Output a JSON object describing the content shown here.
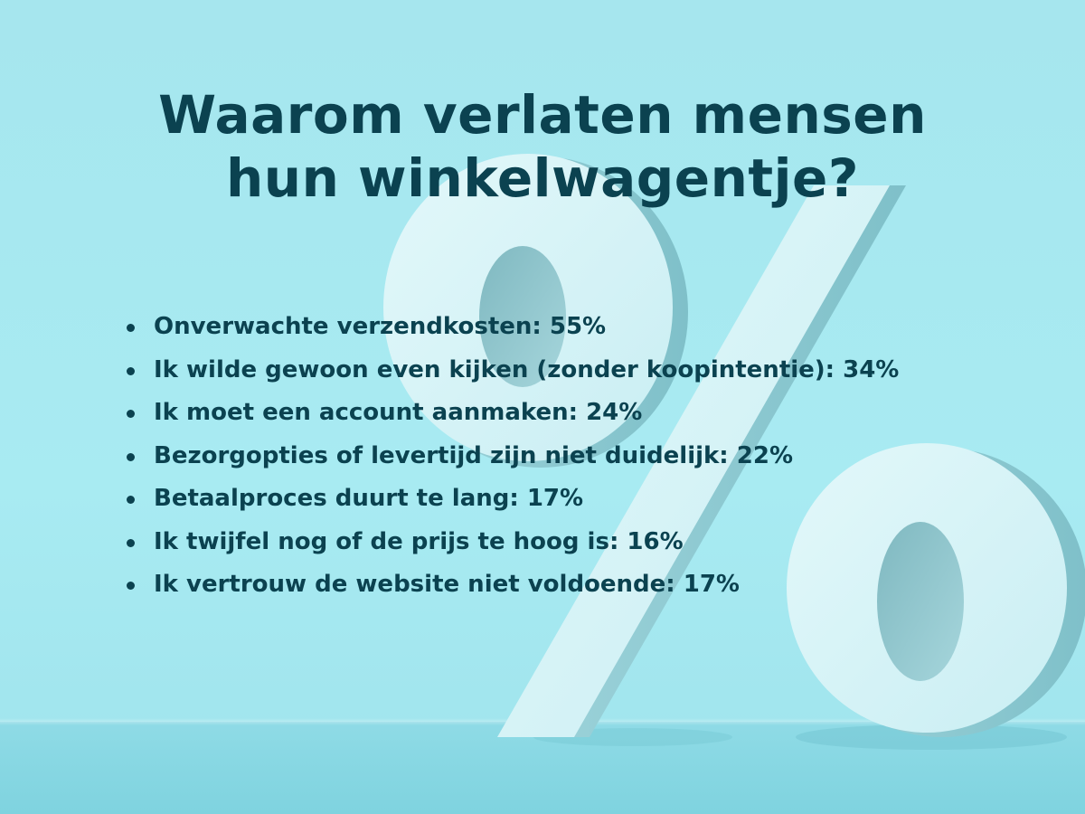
{
  "title": {
    "line1": "Waarom verlaten mensen",
    "line2": "hun winkelwagentje?"
  },
  "reasons": [
    "Onverwachte verzendkosten: 55%",
    "Ik wilde gewoon even kijken (zonder koopintentie): 34%",
    "Ik moet een account aanmaken: 24%",
    "Bezorgopties of levertijd zijn niet duidelijk: 22%",
    "Betaalproces duurt te lang: 17%",
    "Ik twijfel nog of de prijs te hoog is: 16%",
    "Ik vertrouw de website niet voldoende: 17%"
  ],
  "colors": {
    "text": "#0b4250",
    "background": "#a6e6ee",
    "percent_sign": "#d6f3f6"
  },
  "background_art": "percent-sign-3d"
}
